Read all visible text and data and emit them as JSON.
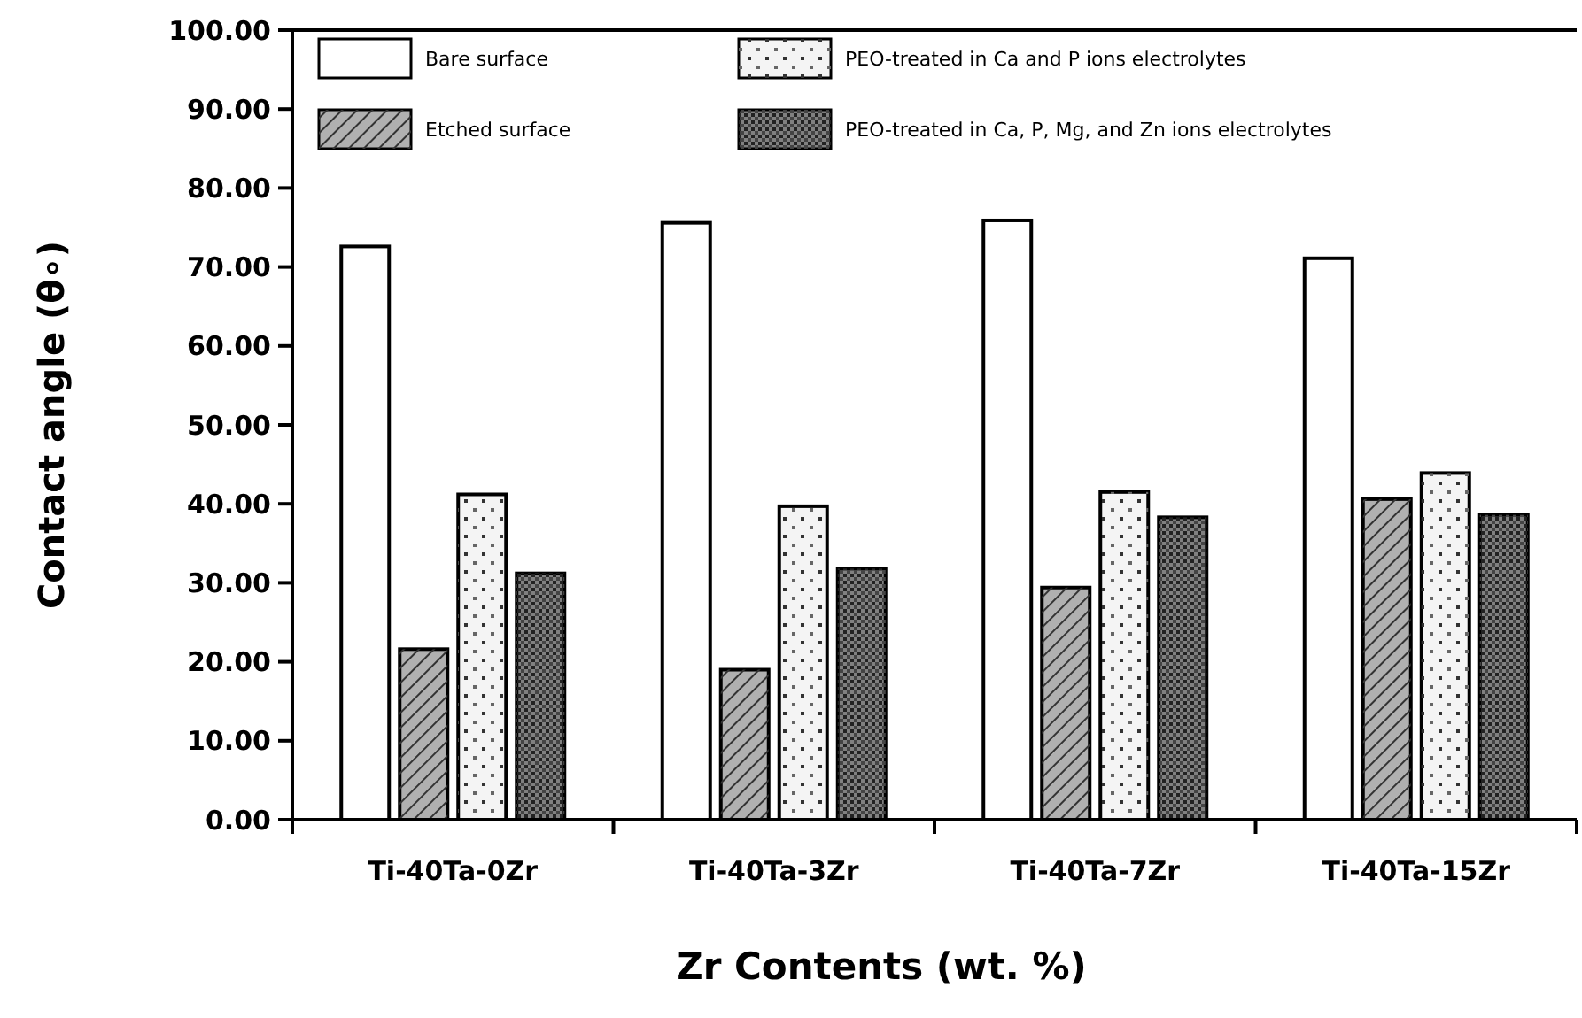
{
  "chart_data": {
    "type": "bar",
    "xlabel": "Zr Contents (wt. %)",
    "ylabel": "Contact angle (θ∘)",
    "categories": [
      "Ti-40Ta-0Zr",
      "Ti-40Ta-3Zr",
      "Ti-40Ta-7Zr",
      "Ti-40Ta-15Zr"
    ],
    "series": [
      {
        "name": "Bare surface",
        "color": "#ffffff",
        "values": [
          72.6,
          75.6,
          75.9,
          71.1
        ]
      },
      {
        "name": "Etched surface",
        "color": "#b0b0b0",
        "values": [
          21.6,
          19.0,
          29.4,
          40.6
        ]
      },
      {
        "name": "PEO-treated in Ca and P ions electrolytes",
        "color": "#f4f4f4",
        "values": [
          41.2,
          39.7,
          41.5,
          43.9
        ]
      },
      {
        "name": "PEO-treated in Ca, P, Mg, and Zn ions electrolytes",
        "color": "#808080",
        "values": [
          31.2,
          31.8,
          38.3,
          38.6
        ]
      }
    ],
    "ylim": [
      0,
      100
    ],
    "yticks": [
      {
        "value": 0,
        "label": "0.00"
      },
      {
        "value": 10,
        "label": "10.00"
      },
      {
        "value": 20,
        "label": "20.00"
      },
      {
        "value": 30,
        "label": "30.00"
      },
      {
        "value": 40,
        "label": "40.00"
      },
      {
        "value": 50,
        "label": "50.00"
      },
      {
        "value": 60,
        "label": "60.00"
      },
      {
        "value": 70,
        "label": "70.00"
      },
      {
        "value": 80,
        "label": "80.00"
      },
      {
        "value": 90,
        "label": "90.00"
      },
      {
        "value": 100,
        "label": "100.00"
      }
    ],
    "legend": "top",
    "grid": false
  }
}
